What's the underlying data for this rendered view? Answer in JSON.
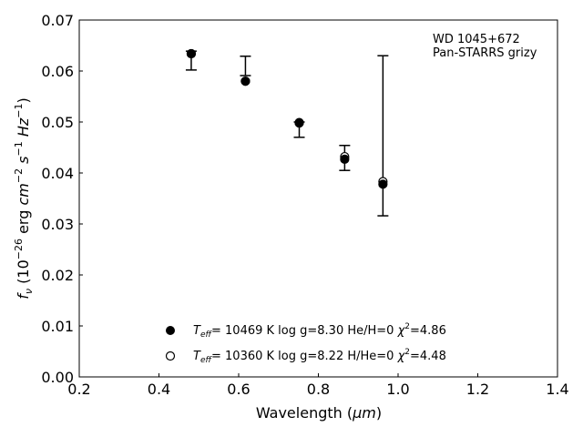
{
  "chart_data": {
    "type": "scatter",
    "xlabel": "Wavelength (",
    "xlabel_unit": "μm",
    "ylabel_f": "f",
    "ylabel_sub": "ν",
    "ylabel_rest": "(10",
    "ylabel_exp": "−26",
    "ylabel_erg": "erg",
    "ylabel_cm": "cm",
    "ylabel_cm_exp": "−2",
    "ylabel_s": "s",
    "ylabel_s_exp": "−1",
    "ylabel_hz": "Hz",
    "ylabel_hz_exp": "−1",
    "xlim": [
      0.2,
      1.4
    ],
    "ylim": [
      0.0,
      0.07
    ],
    "x_ticks": [
      "0.2",
      "0.4",
      "0.6",
      "0.8",
      "1.0",
      "1.2",
      "1.4"
    ],
    "y_ticks": [
      "0.00",
      "0.01",
      "0.02",
      "0.03",
      "0.04",
      "0.05",
      "0.06",
      "0.07"
    ],
    "annotation_lines": [
      "WD 1045+672",
      "Pan-STARRS grizy"
    ],
    "observed": {
      "x": [
        0.481,
        0.617,
        0.752,
        0.866,
        0.962
      ],
      "y": [
        0.0632,
        0.0611,
        0.0492,
        0.0429,
        0.0473
      ],
      "yerr_low": [
        0.003,
        0.002,
        0.0022,
        0.0024,
        0.0157
      ],
      "yerr_high": [
        0.0007,
        0.0018,
        0.0008,
        0.0025,
        0.0157
      ]
    },
    "series": [
      {
        "marker": "filled-circle",
        "x": [
          0.481,
          0.617,
          0.752,
          0.866,
          0.962
        ],
        "y": [
          0.0634,
          0.058,
          0.0499,
          0.0427,
          0.0378
        ],
        "legend_T": "T",
        "legend_T_sub": "eff",
        "legend_text": "= 10469 K  log g=8.30  He/H=0  ",
        "legend_chi": "χ",
        "legend_chi_exp": "2",
        "legend_chi_val": "=4.86"
      },
      {
        "marker": "open-circle",
        "x": [
          0.481,
          0.617,
          0.752,
          0.866,
          0.962
        ],
        "y": [
          0.0634,
          0.058,
          0.0498,
          0.0432,
          0.0383
        ],
        "legend_T": "T",
        "legend_T_sub": "eff",
        "legend_text": "= 10360 K  log g=8.22  H/He=0  ",
        "legend_chi": "χ",
        "legend_chi_exp": "2",
        "legend_chi_val": "=4.48"
      }
    ]
  }
}
